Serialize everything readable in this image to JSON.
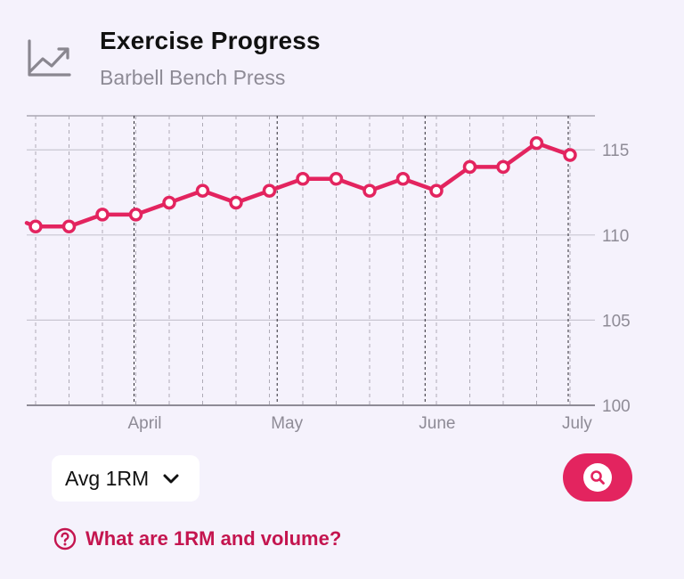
{
  "header": {
    "title": "Exercise Progress",
    "subtitle": "Barbell Bench Press",
    "icon": "chart-line-icon"
  },
  "chart_data": {
    "type": "line",
    "x_axis": {
      "labels": [
        "April",
        "May",
        "June",
        "July"
      ],
      "label_dates": [
        "2024-04-01",
        "2024-05-01",
        "2024-06-01",
        "2024-07-01"
      ]
    },
    "y_axis": {
      "ticks": [
        100,
        105,
        110,
        115
      ],
      "range": [
        100,
        117
      ],
      "position": "right"
    },
    "grid": true,
    "series": [
      {
        "color": "#e3245f",
        "points": [
          {
            "x": "2024-03-11",
            "y": 110.5
          },
          {
            "x": "2024-03-18",
            "y": 110.5
          },
          {
            "x": "2024-03-25",
            "y": 111.2
          },
          {
            "x": "2024-04-01",
            "y": 111.2
          },
          {
            "x": "2024-04-08",
            "y": 111.9
          },
          {
            "x": "2024-04-15",
            "y": 112.6
          },
          {
            "x": "2024-04-22",
            "y": 111.9
          },
          {
            "x": "2024-04-29",
            "y": 112.6
          },
          {
            "x": "2024-05-06",
            "y": 113.3
          },
          {
            "x": "2024-05-13",
            "y": 113.3
          },
          {
            "x": "2024-05-20",
            "y": 112.6
          },
          {
            "x": "2024-05-27",
            "y": 113.3
          },
          {
            "x": "2024-06-03",
            "y": 112.6
          },
          {
            "x": "2024-06-10",
            "y": 114.0
          },
          {
            "x": "2024-06-17",
            "y": 114.0
          },
          {
            "x": "2024-06-24",
            "y": 115.4
          },
          {
            "x": "2024-07-01",
            "y": 114.7
          }
        ]
      }
    ]
  },
  "controls": {
    "metric_select_label": "Avg 1RM",
    "zoom_icon": "magnifier-icon",
    "help_text": "What are 1RM and volume?",
    "help_icon": "question-circle-icon"
  },
  "colors": {
    "accent": "#e3245f",
    "background": "#f5f2fc",
    "link": "#c4154f"
  }
}
